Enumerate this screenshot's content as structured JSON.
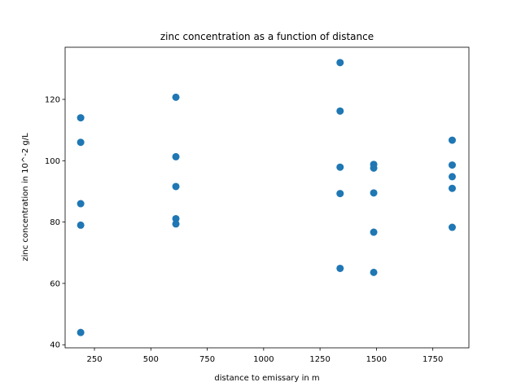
{
  "chart_data": {
    "type": "scatter",
    "title": "zinc concentration as a function of distance",
    "xlabel": "distance to emissary in m",
    "ylabel": "zinc concentration in 10^-2 g/L",
    "xlim": [
      120,
      1910
    ],
    "ylim": [
      39,
      137
    ],
    "xticks": [
      250,
      500,
      750,
      1000,
      1250,
      1500,
      1750
    ],
    "yticks": [
      40,
      60,
      80,
      100,
      120
    ],
    "grid": false,
    "marker_color": "#1f77b4",
    "points": [
      {
        "x": 189,
        "y": 114
      },
      {
        "x": 189,
        "y": 106
      },
      {
        "x": 189,
        "y": 86
      },
      {
        "x": 189,
        "y": 79
      },
      {
        "x": 189,
        "y": 44
      },
      {
        "x": 611,
        "y": 120.7
      },
      {
        "x": 611,
        "y": 101.3
      },
      {
        "x": 611,
        "y": 91.6
      },
      {
        "x": 611,
        "y": 81.1
      },
      {
        "x": 611,
        "y": 79.4
      },
      {
        "x": 1339,
        "y": 132
      },
      {
        "x": 1339,
        "y": 116.2
      },
      {
        "x": 1339,
        "y": 97.9
      },
      {
        "x": 1339,
        "y": 89.3
      },
      {
        "x": 1339,
        "y": 64.9
      },
      {
        "x": 1488,
        "y": 98.8
      },
      {
        "x": 1488,
        "y": 97.6
      },
      {
        "x": 1488,
        "y": 89.5
      },
      {
        "x": 1488,
        "y": 76.7
      },
      {
        "x": 1488,
        "y": 63.6
      },
      {
        "x": 1836,
        "y": 106.7
      },
      {
        "x": 1836,
        "y": 98.6
      },
      {
        "x": 1836,
        "y": 94.8
      },
      {
        "x": 1836,
        "y": 91
      },
      {
        "x": 1836,
        "y": 78.3
      }
    ]
  }
}
